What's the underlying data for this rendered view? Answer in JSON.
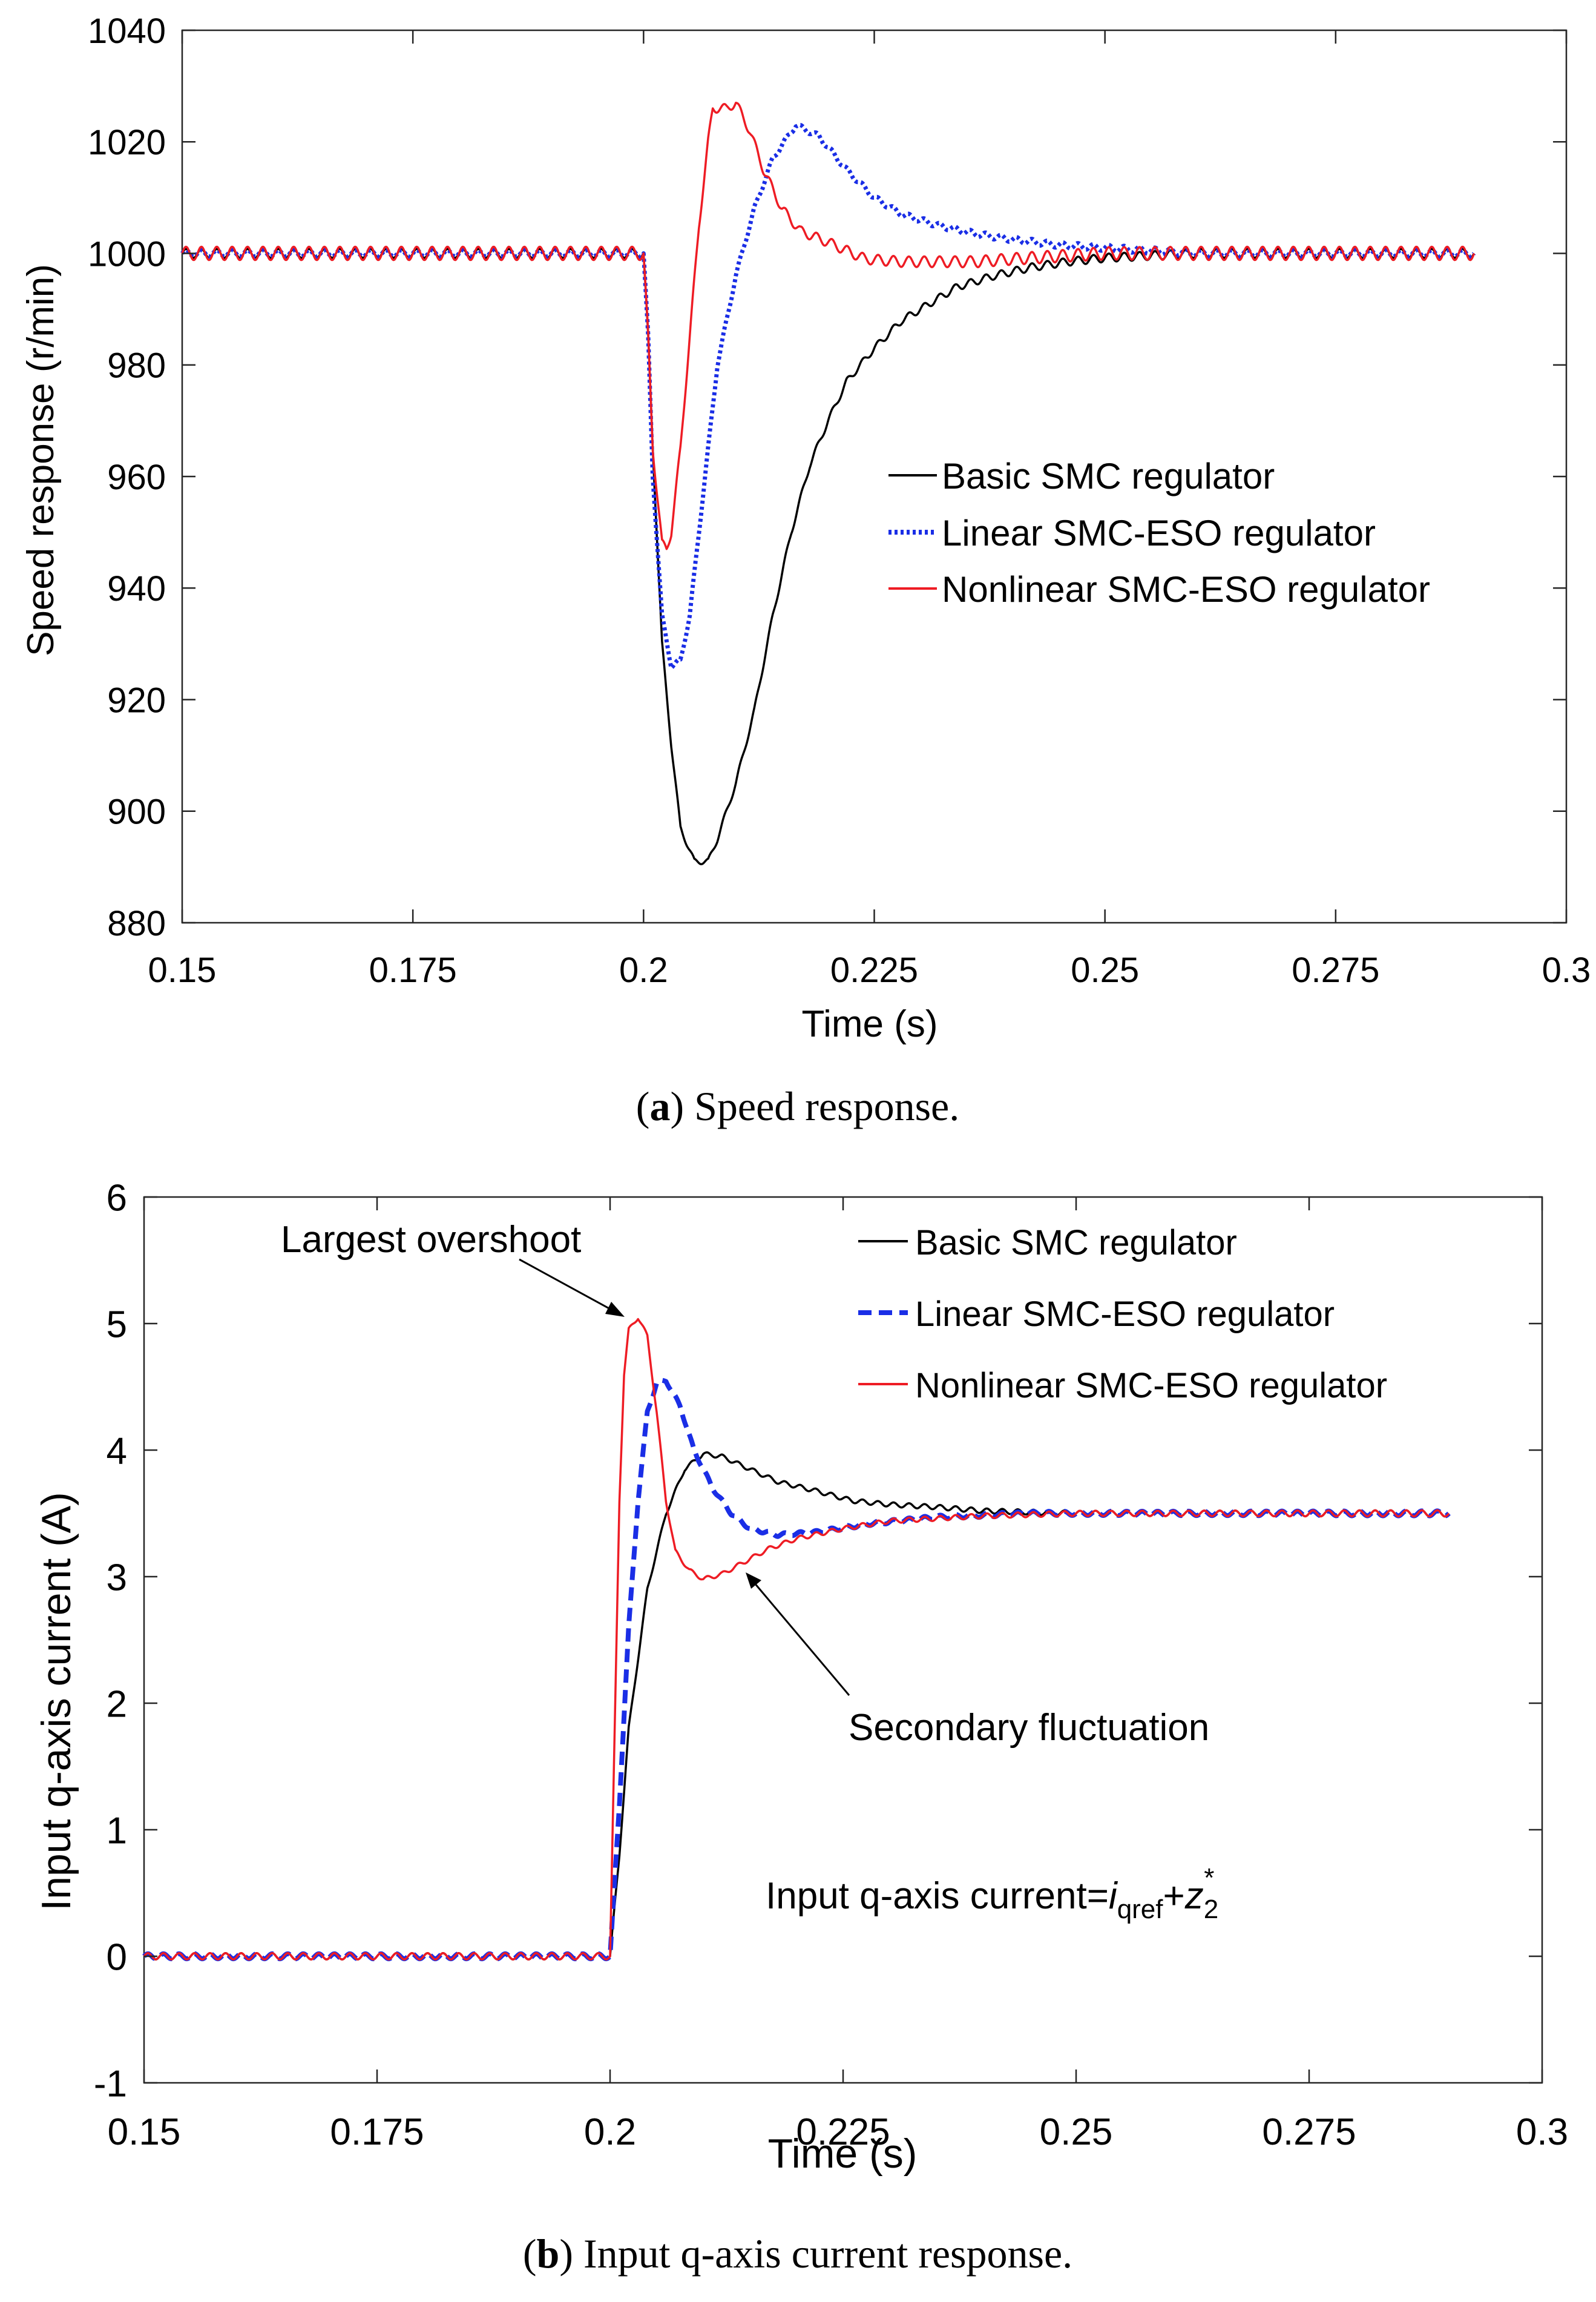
{
  "captions": {
    "a_label": "a",
    "a_text": "Speed response.",
    "b_label": "b",
    "b_text": "Input q-axis current response."
  },
  "chart_data": [
    {
      "id": "a",
      "type": "line",
      "xlabel": "Time (s)",
      "ylabel": "Speed response (r/min)",
      "xlim": [
        0.15,
        0.3
      ],
      "ylim": [
        880,
        1040
      ],
      "xticks": [
        0.15,
        0.175,
        0.2,
        0.225,
        0.25,
        0.275,
        0.3
      ],
      "xtick_labels": [
        "0.15",
        "0.175",
        "0.2",
        "0.225",
        "0.25",
        "0.275",
        "0.3"
      ],
      "yticks": [
        880,
        900,
        920,
        940,
        960,
        980,
        1000,
        1020,
        1040
      ],
      "ytick_labels": [
        "880",
        "900",
        "920",
        "940",
        "960",
        "980",
        "1000",
        "1020",
        "1040"
      ],
      "grid": false,
      "legend_position": "right",
      "series": [
        {
          "name": "Basic SMC regulator",
          "color": "#000000",
          "style": "solid",
          "ripple": {
            "amp": 0.8,
            "freq": 600,
            "decay_from": 0.2,
            "decay_to": 0.26
          },
          "points": [
            [
              0.15,
              1000
            ],
            [
              0.2,
              1000
            ],
            [
              0.2005,
              985
            ],
            [
              0.201,
              965
            ],
            [
              0.202,
              930
            ],
            [
              0.203,
              912
            ],
            [
              0.204,
              897
            ],
            [
              0.2055,
              891
            ],
            [
              0.207,
              891
            ],
            [
              0.208,
              895
            ],
            [
              0.21,
              905
            ],
            [
              0.212,
              918
            ],
            [
              0.214,
              935
            ],
            [
              0.216,
              950
            ],
            [
              0.218,
              962
            ],
            [
              0.22,
              970
            ],
            [
              0.222,
              977
            ],
            [
              0.225,
              983
            ],
            [
              0.228,
              988
            ],
            [
              0.231,
              991
            ],
            [
              0.234,
              994
            ],
            [
              0.238,
              996
            ],
            [
              0.242,
              997.5
            ],
            [
              0.246,
              998.5
            ],
            [
              0.25,
              999.2
            ],
            [
              0.255,
              999.6
            ],
            [
              0.26,
              1000
            ],
            [
              0.29,
              1000
            ]
          ]
        },
        {
          "name": "Linear SMC-ESO regulator",
          "color": "#1a2ee6",
          "style": "dotted",
          "ripple": {
            "amp": 0.6,
            "freq": 600,
            "decay_from": 0.2,
            "decay_to": 0.26
          },
          "points": [
            [
              0.15,
              1000
            ],
            [
              0.2,
              1000
            ],
            [
              0.2005,
              985
            ],
            [
              0.201,
              960
            ],
            [
              0.202,
              935
            ],
            [
              0.203,
              926
            ],
            [
              0.204,
              927
            ],
            [
              0.205,
              935
            ],
            [
              0.206,
              950
            ],
            [
              0.207,
              965
            ],
            [
              0.208,
              980
            ],
            [
              0.21,
              996
            ],
            [
              0.212,
              1008
            ],
            [
              0.214,
              1017
            ],
            [
              0.2165,
              1023
            ],
            [
              0.219,
              1021
            ],
            [
              0.222,
              1015
            ],
            [
              0.225,
              1010
            ],
            [
              0.228,
              1007
            ],
            [
              0.232,
              1005
            ],
            [
              0.236,
              1003.5
            ],
            [
              0.24,
              1002.5
            ],
            [
              0.245,
              1001.5
            ],
            [
              0.25,
              1001
            ],
            [
              0.255,
              1000.5
            ],
            [
              0.26,
              1000
            ],
            [
              0.29,
              1000
            ]
          ]
        },
        {
          "name": "Nonlinear SMC-ESO regulator",
          "color": "#ee1c24",
          "style": "solid",
          "ripple": {
            "amp": 1.2,
            "freq": 600,
            "decay_from": 0.2,
            "decay_to": 0.26
          },
          "points": [
            [
              0.15,
              1000
            ],
            [
              0.2,
              1000
            ],
            [
              0.2005,
              985
            ],
            [
              0.201,
              965
            ],
            [
              0.202,
              948
            ],
            [
              0.2025,
              947
            ],
            [
              0.203,
              950
            ],
            [
              0.204,
              965
            ],
            [
              0.205,
              985
            ],
            [
              0.206,
              1005
            ],
            [
              0.207,
              1020
            ],
            [
              0.2075,
              1026
            ],
            [
              0.209,
              1026
            ],
            [
              0.21,
              1027
            ],
            [
              0.2115,
              1022
            ],
            [
              0.213,
              1015
            ],
            [
              0.215,
              1008
            ],
            [
              0.217,
              1004
            ],
            [
              0.22,
              1002
            ],
            [
              0.224,
              999
            ],
            [
              0.228,
              998.5
            ],
            [
              0.232,
              998.5
            ],
            [
              0.236,
              998.5
            ],
            [
              0.24,
              999
            ],
            [
              0.245,
              999.5
            ],
            [
              0.25,
              1000
            ],
            [
              0.29,
              1000
            ]
          ]
        }
      ]
    },
    {
      "id": "b",
      "type": "line",
      "xlabel": "Time (s)",
      "ylabel": "Input q-axis current (A)",
      "xlim": [
        0.15,
        0.3
      ],
      "ylim": [
        -1,
        6
      ],
      "xticks": [
        0.15,
        0.175,
        0.2,
        0.225,
        0.25,
        0.275,
        0.3
      ],
      "xtick_labels": [
        "0.15",
        "0.175",
        "0.2",
        "0.225",
        "0.25",
        "0.275",
        "0.3"
      ],
      "yticks": [
        -1,
        0,
        1,
        2,
        3,
        4,
        5,
        6
      ],
      "ytick_labels": [
        "-1",
        "0",
        "1",
        "2",
        "3",
        "4",
        "5",
        "6"
      ],
      "grid": false,
      "legend_position": "top-right",
      "annotations": {
        "largest_overshoot": "Largest overshoot",
        "secondary_fluctuation": "Secondary fluctuation",
        "formula_prefix": "Input q-axis current=",
        "formula_i": "i",
        "formula_i_sub": "qref",
        "formula_plus": "+",
        "formula_z": "z",
        "formula_z_sub": "2",
        "formula_z_sup": "*"
      },
      "series": [
        {
          "name": "Basic SMC regulator",
          "color": "#000000",
          "style": "solid",
          "ripple": {
            "amp": 0.025,
            "freq": 600,
            "decay_from": 0.2,
            "decay_to": 0.29
          },
          "points": [
            [
              0.15,
              0
            ],
            [
              0.2,
              0
            ],
            [
              0.201,
              0.8
            ],
            [
              0.202,
              1.8
            ],
            [
              0.204,
              2.9
            ],
            [
              0.206,
              3.5
            ],
            [
              0.208,
              3.85
            ],
            [
              0.21,
              3.97
            ],
            [
              0.212,
              3.95
            ],
            [
              0.215,
              3.85
            ],
            [
              0.218,
              3.75
            ],
            [
              0.222,
              3.68
            ],
            [
              0.226,
              3.6
            ],
            [
              0.23,
              3.57
            ],
            [
              0.235,
              3.55
            ],
            [
              0.24,
              3.52
            ],
            [
              0.25,
              3.5
            ],
            [
              0.29,
              3.5
            ]
          ]
        },
        {
          "name": "Linear SMC-ESO regulator",
          "color": "#1a2ee6",
          "style": "dashed",
          "ripple": {
            "amp": 0.02,
            "freq": 600,
            "decay_from": 0.2,
            "decay_to": 0.29
          },
          "points": [
            [
              0.15,
              0
            ],
            [
              0.2,
              0
            ],
            [
              0.201,
              1.2
            ],
            [
              0.202,
              2.6
            ],
            [
              0.203,
              3.6
            ],
            [
              0.204,
              4.3
            ],
            [
              0.205,
              4.53
            ],
            [
              0.206,
              4.55
            ],
            [
              0.2075,
              4.35
            ],
            [
              0.209,
              4.0
            ],
            [
              0.211,
              3.7
            ],
            [
              0.213,
              3.5
            ],
            [
              0.215,
              3.38
            ],
            [
              0.218,
              3.33
            ],
            [
              0.222,
              3.35
            ],
            [
              0.228,
              3.42
            ],
            [
              0.235,
              3.47
            ],
            [
              0.245,
              3.5
            ],
            [
              0.29,
              3.5
            ]
          ]
        },
        {
          "name": "Nonlinear SMC-ESO regulator",
          "color": "#ee1c24",
          "style": "solid",
          "ripple": {
            "amp": 0.025,
            "freq": 600,
            "decay_from": 0.2,
            "decay_to": 0.29
          },
          "points": [
            [
              0.15,
              0
            ],
            [
              0.2,
              0
            ],
            [
              0.2005,
              1.8
            ],
            [
              0.201,
              3.6
            ],
            [
              0.2015,
              4.6
            ],
            [
              0.202,
              4.95
            ],
            [
              0.203,
              5.05
            ],
            [
              0.204,
              4.9
            ],
            [
              0.205,
              4.3
            ],
            [
              0.206,
              3.6
            ],
            [
              0.207,
              3.2
            ],
            [
              0.2085,
              3.05
            ],
            [
              0.21,
              2.98
            ],
            [
              0.212,
              3.02
            ],
            [
              0.214,
              3.1
            ],
            [
              0.217,
              3.22
            ],
            [
              0.22,
              3.3
            ],
            [
              0.225,
              3.38
            ],
            [
              0.23,
              3.44
            ],
            [
              0.24,
              3.48
            ],
            [
              0.25,
              3.5
            ],
            [
              0.29,
              3.5
            ]
          ]
        }
      ]
    }
  ]
}
